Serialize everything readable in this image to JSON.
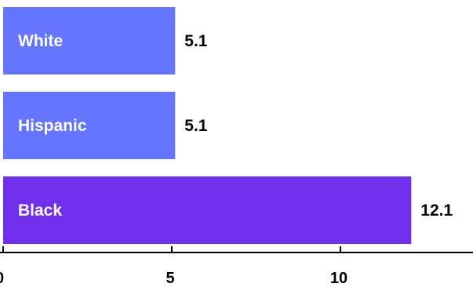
{
  "chart_data": {
    "type": "bar",
    "orientation": "horizontal",
    "categories": [
      "White",
      "Hispanic",
      "Black"
    ],
    "values": [
      5.1,
      5.1,
      12.1
    ],
    "value_labels": [
      "5.1",
      "5.1",
      "12.1"
    ],
    "bar_colors": [
      "#6675ff",
      "#6675ff",
      "#7030eb"
    ],
    "x_ticks": [
      0,
      5,
      10
    ],
    "x_tick_labels": [
      "0",
      "5",
      "10"
    ],
    "xlim": [
      0,
      14
    ],
    "grid": false,
    "title": "",
    "xlabel": "",
    "ylabel": ""
  }
}
